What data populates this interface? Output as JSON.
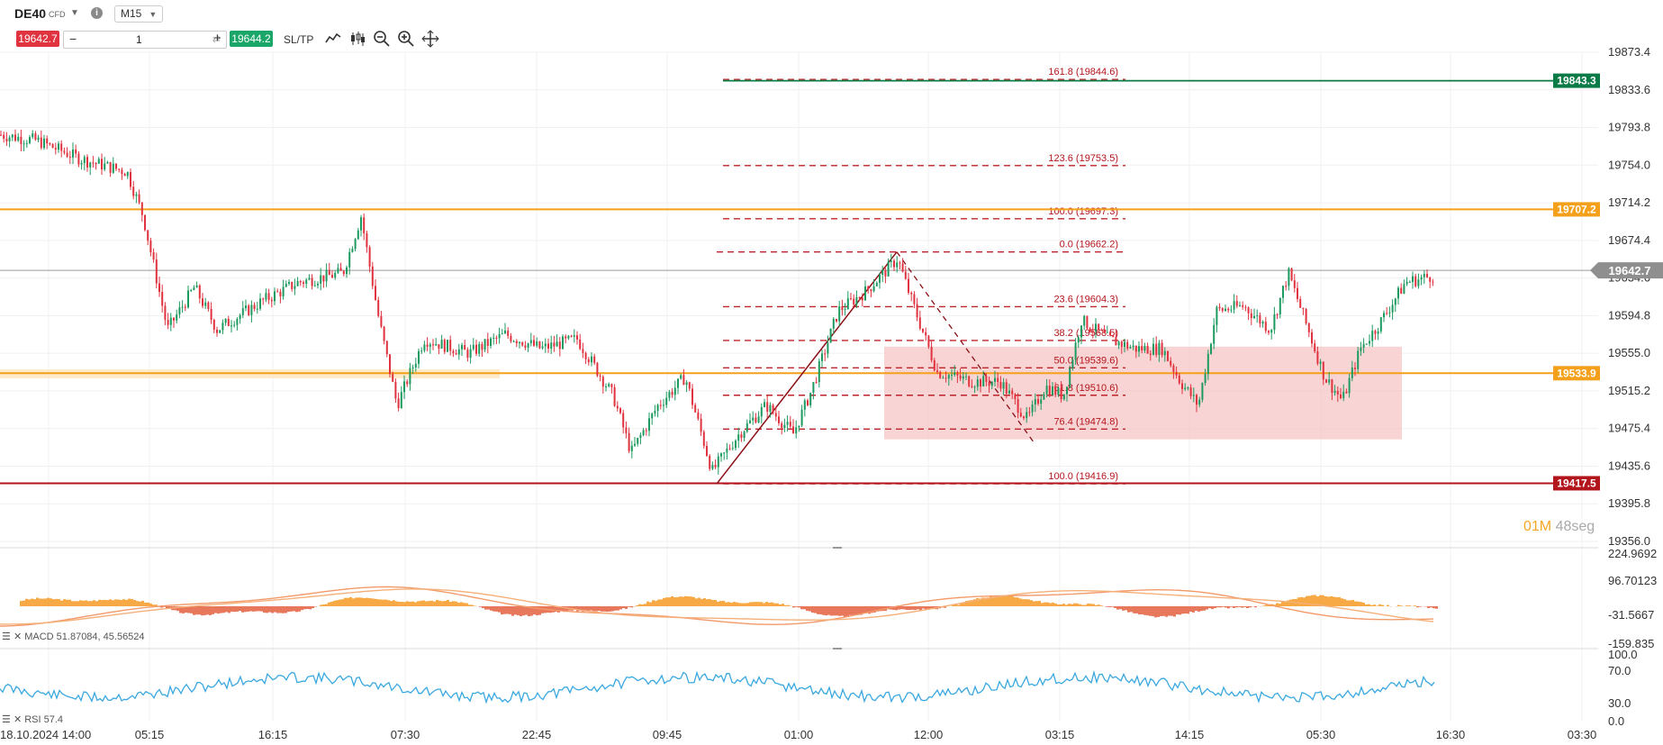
{
  "header": {
    "symbol": "DE40",
    "instrument_type": "CFD",
    "timeframe": "M15",
    "dropdown_icon": "chevron-down-icon",
    "info_icon": "info-icon"
  },
  "trade_bar": {
    "sell_price": "19642.7",
    "quantity": "1",
    "minus_label": "−",
    "plus_label": "+",
    "buy_price": "19644.2",
    "sltp_label": "SL/TP",
    "tools": [
      "line-chart-icon",
      "candlestick-icon",
      "zoom-out-icon",
      "zoom-in-icon",
      "crosshair-icon"
    ],
    "sell_color": "#e0323f",
    "buy_color": "#1aa668"
  },
  "chart_data": {
    "type": "candlestick",
    "symbol": "DE40",
    "timeframe": "M15",
    "y_ticks": [
      "19873.4",
      "19833.6",
      "19793.8",
      "19754.0",
      "19714.2",
      "19674.4",
      "19634.6",
      "19594.8",
      "19555.0",
      "19515.2",
      "19475.4",
      "19435.6",
      "19395.8",
      "19356.0"
    ],
    "ylim": [
      19356.0,
      19873.4
    ],
    "x_ticks": [
      "18.10.2024 14:00",
      "05:15",
      "16:15",
      "07:30",
      "22:45",
      "09:45",
      "01:00",
      "12:00",
      "03:15",
      "14:15",
      "05:30",
      "16:30",
      "03:30"
    ],
    "current_price": "19642.7",
    "price_levels": [
      {
        "label": "19843.3",
        "value": 19843.3,
        "color": "#0a7a46"
      },
      {
        "label": "19707.2",
        "value": 19707.2,
        "color": "#f5a01a"
      },
      {
        "label": "19533.9",
        "value": 19533.9,
        "color": "#f5a01a"
      },
      {
        "label": "19417.5",
        "value": 19417.5,
        "color": "#b3151c"
      }
    ],
    "fibonacci": [
      {
        "label": "161.8 (19844.6)",
        "value": 19844.6
      },
      {
        "label": "123.6 (19753.5)",
        "value": 19753.5
      },
      {
        "label": "100.0 (19697.3)",
        "value": 19697.3
      },
      {
        "label": "0.0 (19662.2)",
        "value": 19662.2
      },
      {
        "label": "23.6 (19604.3)",
        "value": 19604.3
      },
      {
        "label": "38.2 (19568.5)",
        "value": 19568.5
      },
      {
        "label": "50.0 (19539.6)",
        "value": 19539.6
      },
      {
        "label": "61.8 (19510.6)",
        "value": 19510.6
      },
      {
        "label": "76.4 (19474.8)",
        "value": 19474.8
      },
      {
        "label": "100.0 (19416.9)",
        "value": 19416.9
      }
    ],
    "zone": {
      "from": 19464.0,
      "to": 19562.0,
      "color": "#f7c6c6"
    },
    "timer": {
      "minutes": "01M",
      "seconds": "48seg"
    }
  },
  "macd": {
    "label": "MACD 51.87084, 45.56524",
    "y_ticks": [
      "224.9692",
      "96.70123",
      "-31.5667",
      "-159.835"
    ]
  },
  "rsi": {
    "label": "RSI 57.4",
    "y_ticks": [
      "100.0",
      "70.0",
      "30.0",
      "0.0"
    ]
  }
}
